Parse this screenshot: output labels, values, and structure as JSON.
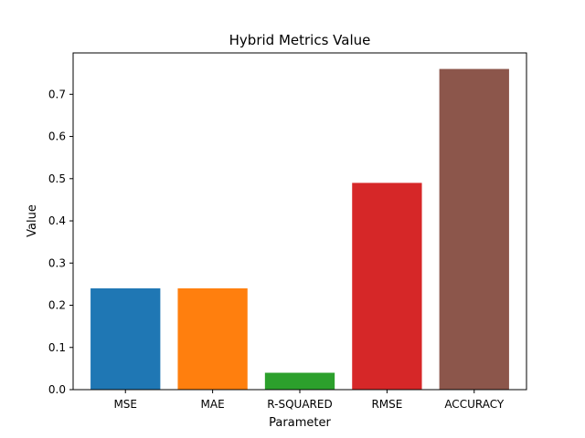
{
  "chart_data": {
    "type": "bar",
    "title": "Hybrid Metrics Value",
    "xlabel": "Parameter",
    "ylabel": "Value",
    "categories": [
      "MSE",
      "MAE",
      "R-SQUARED",
      "RMSE",
      "ACCURACY"
    ],
    "values": [
      0.24,
      0.24,
      0.04,
      0.49,
      0.76
    ],
    "colors": [
      "#1f77b4",
      "#ff7f0e",
      "#2ca02c",
      "#d62728",
      "#8c564b"
    ],
    "ylim": [
      0,
      0.798
    ],
    "yticks": [
      0.0,
      0.1,
      0.2,
      0.3,
      0.4,
      0.5,
      0.6,
      0.7
    ],
    "ytick_labels": [
      "0.0",
      "0.1",
      "0.2",
      "0.3",
      "0.4",
      "0.5",
      "0.6",
      "0.7"
    ],
    "grid": false,
    "legend": "none"
  }
}
